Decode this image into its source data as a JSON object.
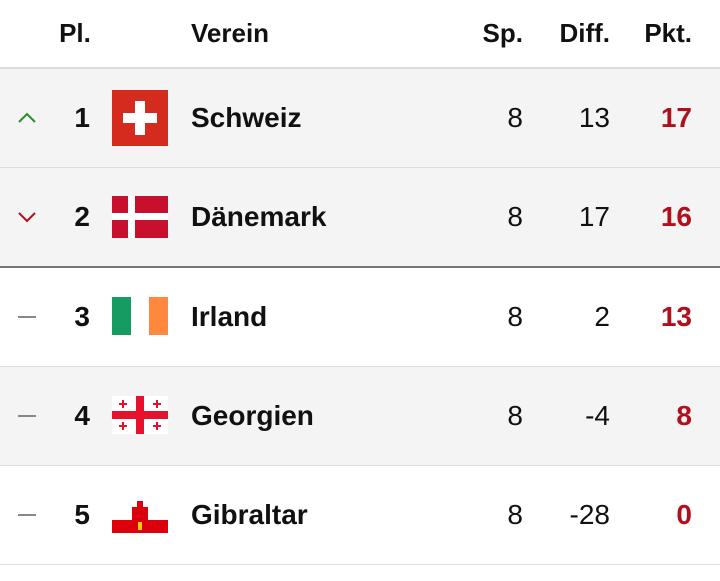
{
  "table": {
    "header": [
      "Pl.",
      "Verein",
      "Sp.",
      "Diff.",
      "Pkt."
    ],
    "rows": [
      [
        1,
        "Schweiz",
        8,
        13,
        17
      ],
      [
        2,
        "Dänemark",
        8,
        17,
        16
      ],
      [
        3,
        "Irland",
        8,
        2,
        13
      ],
      [
        4,
        "Georgien",
        8,
        -4,
        8
      ],
      [
        5,
        "Gibraltar",
        8,
        -28,
        0
      ]
    ]
  }
}
